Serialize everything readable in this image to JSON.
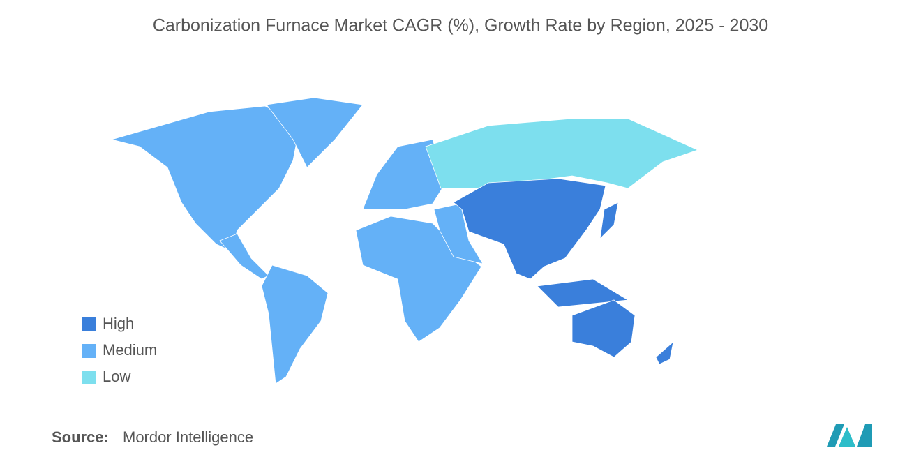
{
  "title": "Carbonization Furnace Market CAGR (%), Growth Rate by Region, 2025 - 2030",
  "legend": [
    {
      "label": "High",
      "color": "#3a7fdb"
    },
    {
      "label": "Medium",
      "color": "#64b1f7"
    },
    {
      "label": "Low",
      "color": "#7ddfee"
    }
  ],
  "source": {
    "label": "Source:",
    "text": "Mordor Intelligence"
  }
}
